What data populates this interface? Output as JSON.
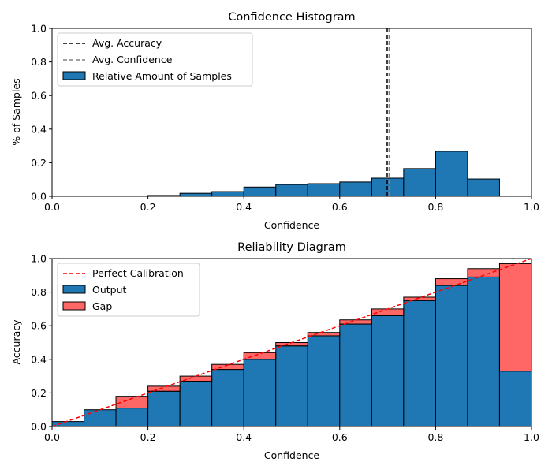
{
  "chart_data": [
    {
      "type": "bar",
      "title": "Confidence Histogram",
      "xlabel": "Confidence",
      "ylabel": "% of Samples",
      "xlim": [
        0,
        1
      ],
      "ylim": [
        0,
        1
      ],
      "xticks": [
        "0.0",
        "0.2",
        "0.4",
        "0.6",
        "0.8",
        "1.0"
      ],
      "yticks": [
        "0.0",
        "0.2",
        "0.4",
        "0.6",
        "0.8",
        "1.0"
      ],
      "legend_position": "top-left",
      "legend": {
        "avg_accuracy": "Avg. Accuracy",
        "avg_confidence": "Avg. Confidence",
        "samples": "Relative Amount of Samples"
      },
      "avg_accuracy": 0.699,
      "avg_confidence": 0.703,
      "bin_edges": [
        0.0,
        0.0667,
        0.1333,
        0.2,
        0.2667,
        0.3333,
        0.4,
        0.4667,
        0.5333,
        0.6,
        0.6667,
        0.7333,
        0.8,
        0.8667,
        0.9333,
        1.0
      ],
      "values": [
        0.0,
        0.0,
        0.0,
        0.005,
        0.018,
        0.028,
        0.055,
        0.07,
        0.075,
        0.085,
        0.108,
        0.165,
        0.268,
        0.103,
        0.0
      ],
      "colors": {
        "bar": "#1f77b4",
        "edge": "#000000",
        "avg_accuracy": "#000000",
        "avg_confidence": "#808080"
      }
    },
    {
      "type": "bar",
      "title": "Reliability Diagram",
      "xlabel": "Confidence",
      "ylabel": "Accuracy",
      "xlim": [
        0,
        1
      ],
      "ylim": [
        0,
        1
      ],
      "xticks": [
        "0.0",
        "0.2",
        "0.4",
        "0.6",
        "0.8",
        "1.0"
      ],
      "yticks": [
        "0.0",
        "0.2",
        "0.4",
        "0.6",
        "0.8",
        "1.0"
      ],
      "legend_position": "top-left",
      "legend": {
        "perfect": "Perfect Calibration",
        "output": "Output",
        "gap": "Gap"
      },
      "bin_edges": [
        0.0,
        0.0667,
        0.1333,
        0.2,
        0.2667,
        0.3333,
        0.4,
        0.4667,
        0.5333,
        0.6,
        0.6667,
        0.7333,
        0.8,
        0.8667,
        0.9333,
        1.0
      ],
      "output": [
        0.03,
        0.1,
        0.11,
        0.21,
        0.27,
        0.34,
        0.4,
        0.48,
        0.54,
        0.61,
        0.66,
        0.75,
        0.84,
        0.89,
        0.33
      ],
      "bin_confidence": [
        0.03,
        0.1,
        0.18,
        0.24,
        0.3,
        0.37,
        0.44,
        0.5,
        0.56,
        0.635,
        0.7,
        0.77,
        0.88,
        0.94,
        0.97
      ],
      "colors": {
        "output": "#1f77b4",
        "gap": "#ff0000",
        "gap_alpha": 0.6,
        "edge": "#000000",
        "perfect": "#ff0000"
      }
    }
  ]
}
